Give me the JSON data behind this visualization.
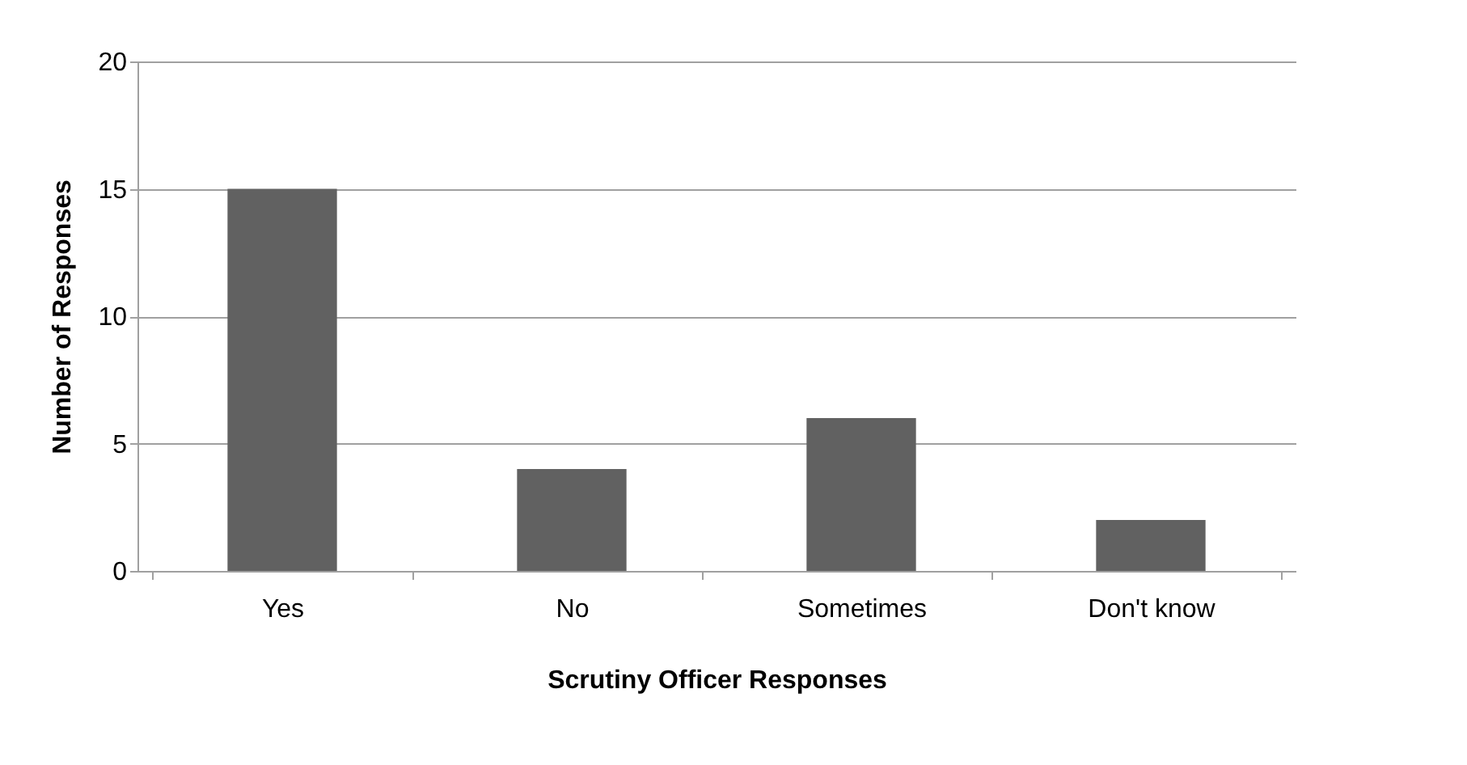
{
  "chart_data": {
    "type": "bar",
    "xlabel": "Scrutiny Officer Responses",
    "ylabel": "Number of Responses",
    "categories": [
      "Yes",
      "No",
      "Sometimes",
      "Don't know"
    ],
    "values": [
      15,
      4,
      6,
      2
    ],
    "color": "#616161",
    "ylim": [
      0,
      20
    ],
    "yticks": [
      0,
      5,
      10,
      15,
      20
    ],
    "grid": "y"
  }
}
